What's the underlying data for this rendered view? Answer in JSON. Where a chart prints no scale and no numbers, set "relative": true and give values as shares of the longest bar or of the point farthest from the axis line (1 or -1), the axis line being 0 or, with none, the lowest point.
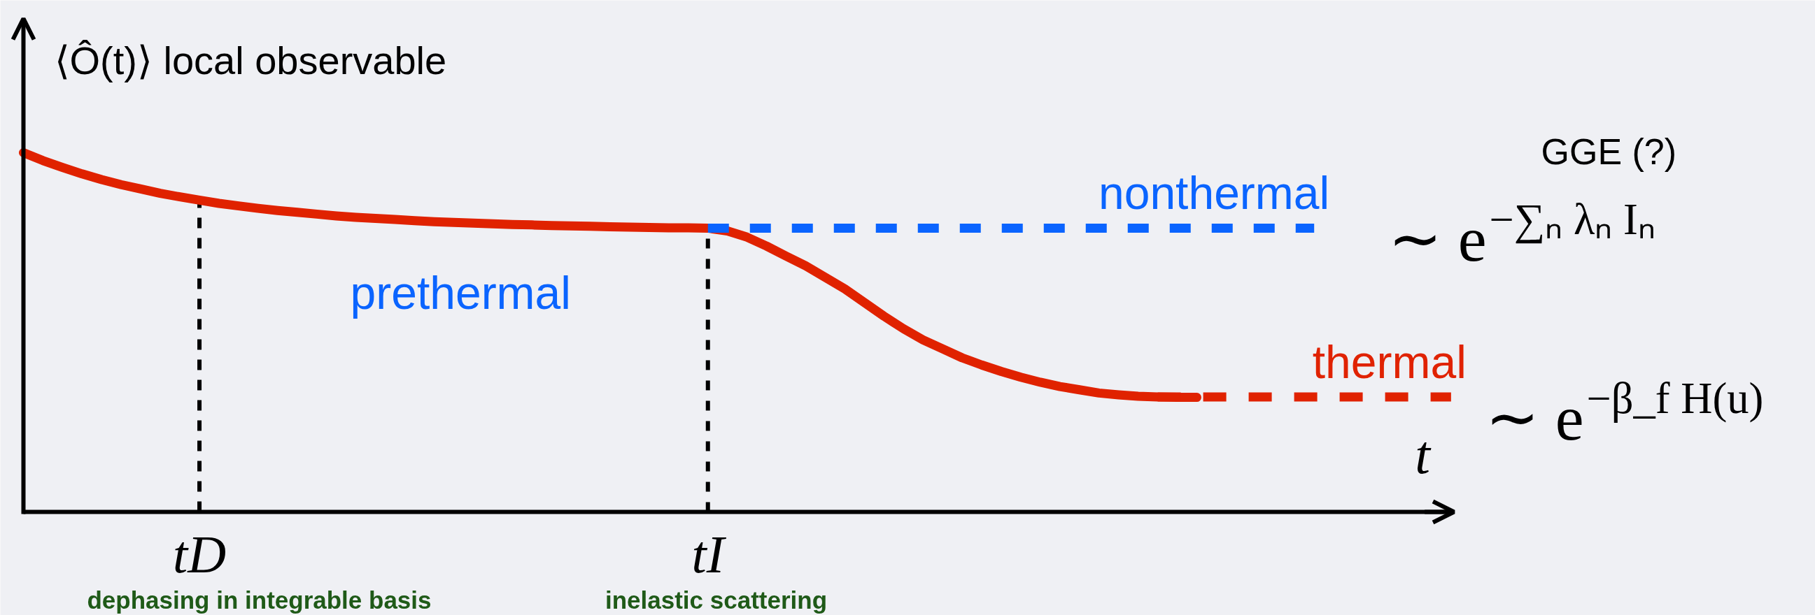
{
  "chart_data": {
    "type": "line",
    "relative": true,
    "line_style": "solid",
    "tick_labels": "x",
    "xlabel": "t",
    "ylabel": "⟨Ô(t)⟩ local observable",
    "categories": [
      null,
      null,
      null,
      null,
      null,
      null,
      null,
      null,
      null,
      "tD",
      null,
      null,
      null,
      null,
      null,
      null,
      null,
      null,
      null,
      null,
      null,
      null,
      null,
      null,
      null,
      null,
      null,
      null,
      null,
      null,
      null,
      null,
      null,
      null,
      null,
      "tI",
      null,
      null,
      null,
      null,
      null,
      null,
      null,
      null,
      null,
      null,
      null,
      null,
      null,
      null,
      null,
      null,
      null,
      null,
      null,
      null,
      null,
      null,
      null,
      null,
      null,
      null,
      null,
      null,
      null,
      null,
      null,
      null,
      null,
      null,
      null,
      null,
      null,
      null
    ],
    "series": [
      {
        "color": "#e02200",
        "values": [
          1.0,
          0.978,
          0.959,
          0.941,
          0.925,
          0.911,
          0.899,
          0.887,
          0.877,
          0.868,
          0.859,
          0.852,
          0.845,
          0.839,
          0.834,
          0.829,
          0.824,
          0.82,
          0.817,
          0.814,
          0.811,
          0.808,
          0.806,
          0.804,
          0.802,
          0.8,
          0.799,
          0.797,
          0.796,
          0.795,
          0.794,
          0.793,
          0.792,
          0.791,
          0.791,
          0.79,
          0.782,
          0.765,
          0.74,
          0.712,
          0.685,
          0.653,
          0.621,
          0.583,
          0.545,
          0.51,
          0.479,
          0.454,
          0.429,
          0.409,
          0.391,
          0.375,
          0.361,
          0.349,
          0.34,
          0.331,
          0.326,
          0.322,
          0.32,
          0.319,
          0.319,
          null,
          null,
          null,
          null,
          null,
          null,
          null,
          null,
          null,
          null,
          null,
          null,
          null
        ]
      },
      {
        "name": "nonthermal",
        "color": "#0a64ff",
        "line_style": "dashed",
        "values": [
          null,
          null,
          null,
          null,
          null,
          null,
          null,
          null,
          null,
          null,
          null,
          null,
          null,
          null,
          null,
          null,
          null,
          null,
          null,
          null,
          null,
          null,
          null,
          null,
          null,
          null,
          null,
          null,
          null,
          null,
          null,
          null,
          null,
          null,
          null,
          0.79,
          0.79,
          0.79,
          0.79,
          0.79,
          0.79,
          0.79,
          0.79,
          0.79,
          0.79,
          0.79,
          0.79,
          0.79,
          0.79,
          0.79,
          0.79,
          0.79,
          0.79,
          0.79,
          0.79,
          0.79,
          0.79,
          0.79,
          0.79,
          0.79,
          0.79,
          0.79,
          0.79,
          0.79,
          0.79,
          0.79,
          0.79,
          null,
          null,
          null,
          null,
          null,
          null,
          null
        ]
      },
      {
        "name": "thermal",
        "color": "#e02200",
        "line_style": "dashed",
        "values": [
          null,
          null,
          null,
          null,
          null,
          null,
          null,
          null,
          null,
          null,
          null,
          null,
          null,
          null,
          null,
          null,
          null,
          null,
          null,
          null,
          null,
          null,
          null,
          null,
          null,
          null,
          null,
          null,
          null,
          null,
          null,
          null,
          null,
          null,
          null,
          null,
          null,
          null,
          null,
          null,
          null,
          null,
          null,
          null,
          null,
          null,
          null,
          null,
          null,
          null,
          null,
          null,
          null,
          null,
          null,
          null,
          null,
          null,
          0.32,
          0.32,
          0.32,
          0.32,
          0.32,
          0.32,
          0.32,
          0.32,
          0.32,
          0.32,
          0.32,
          0.32,
          0.32,
          0.32,
          0.32,
          0.32
        ]
      }
    ],
    "ref_lines": [
      {
        "axis": "x",
        "value": "tD",
        "color": "#000000",
        "line_style": "dashed"
      },
      {
        "axis": "x",
        "value": "tI",
        "color": "#000000",
        "line_style": "dashed"
      }
    ],
    "annotations": [
      "prethermal",
      "GGE (?)",
      "∼ e$^{−∑ₙ λₙ Iₙ}$",
      "∼ e$^{−β_f H(u)}$",
      "dephasing in integrable basis",
      "inelastic scattering"
    ]
  }
}
